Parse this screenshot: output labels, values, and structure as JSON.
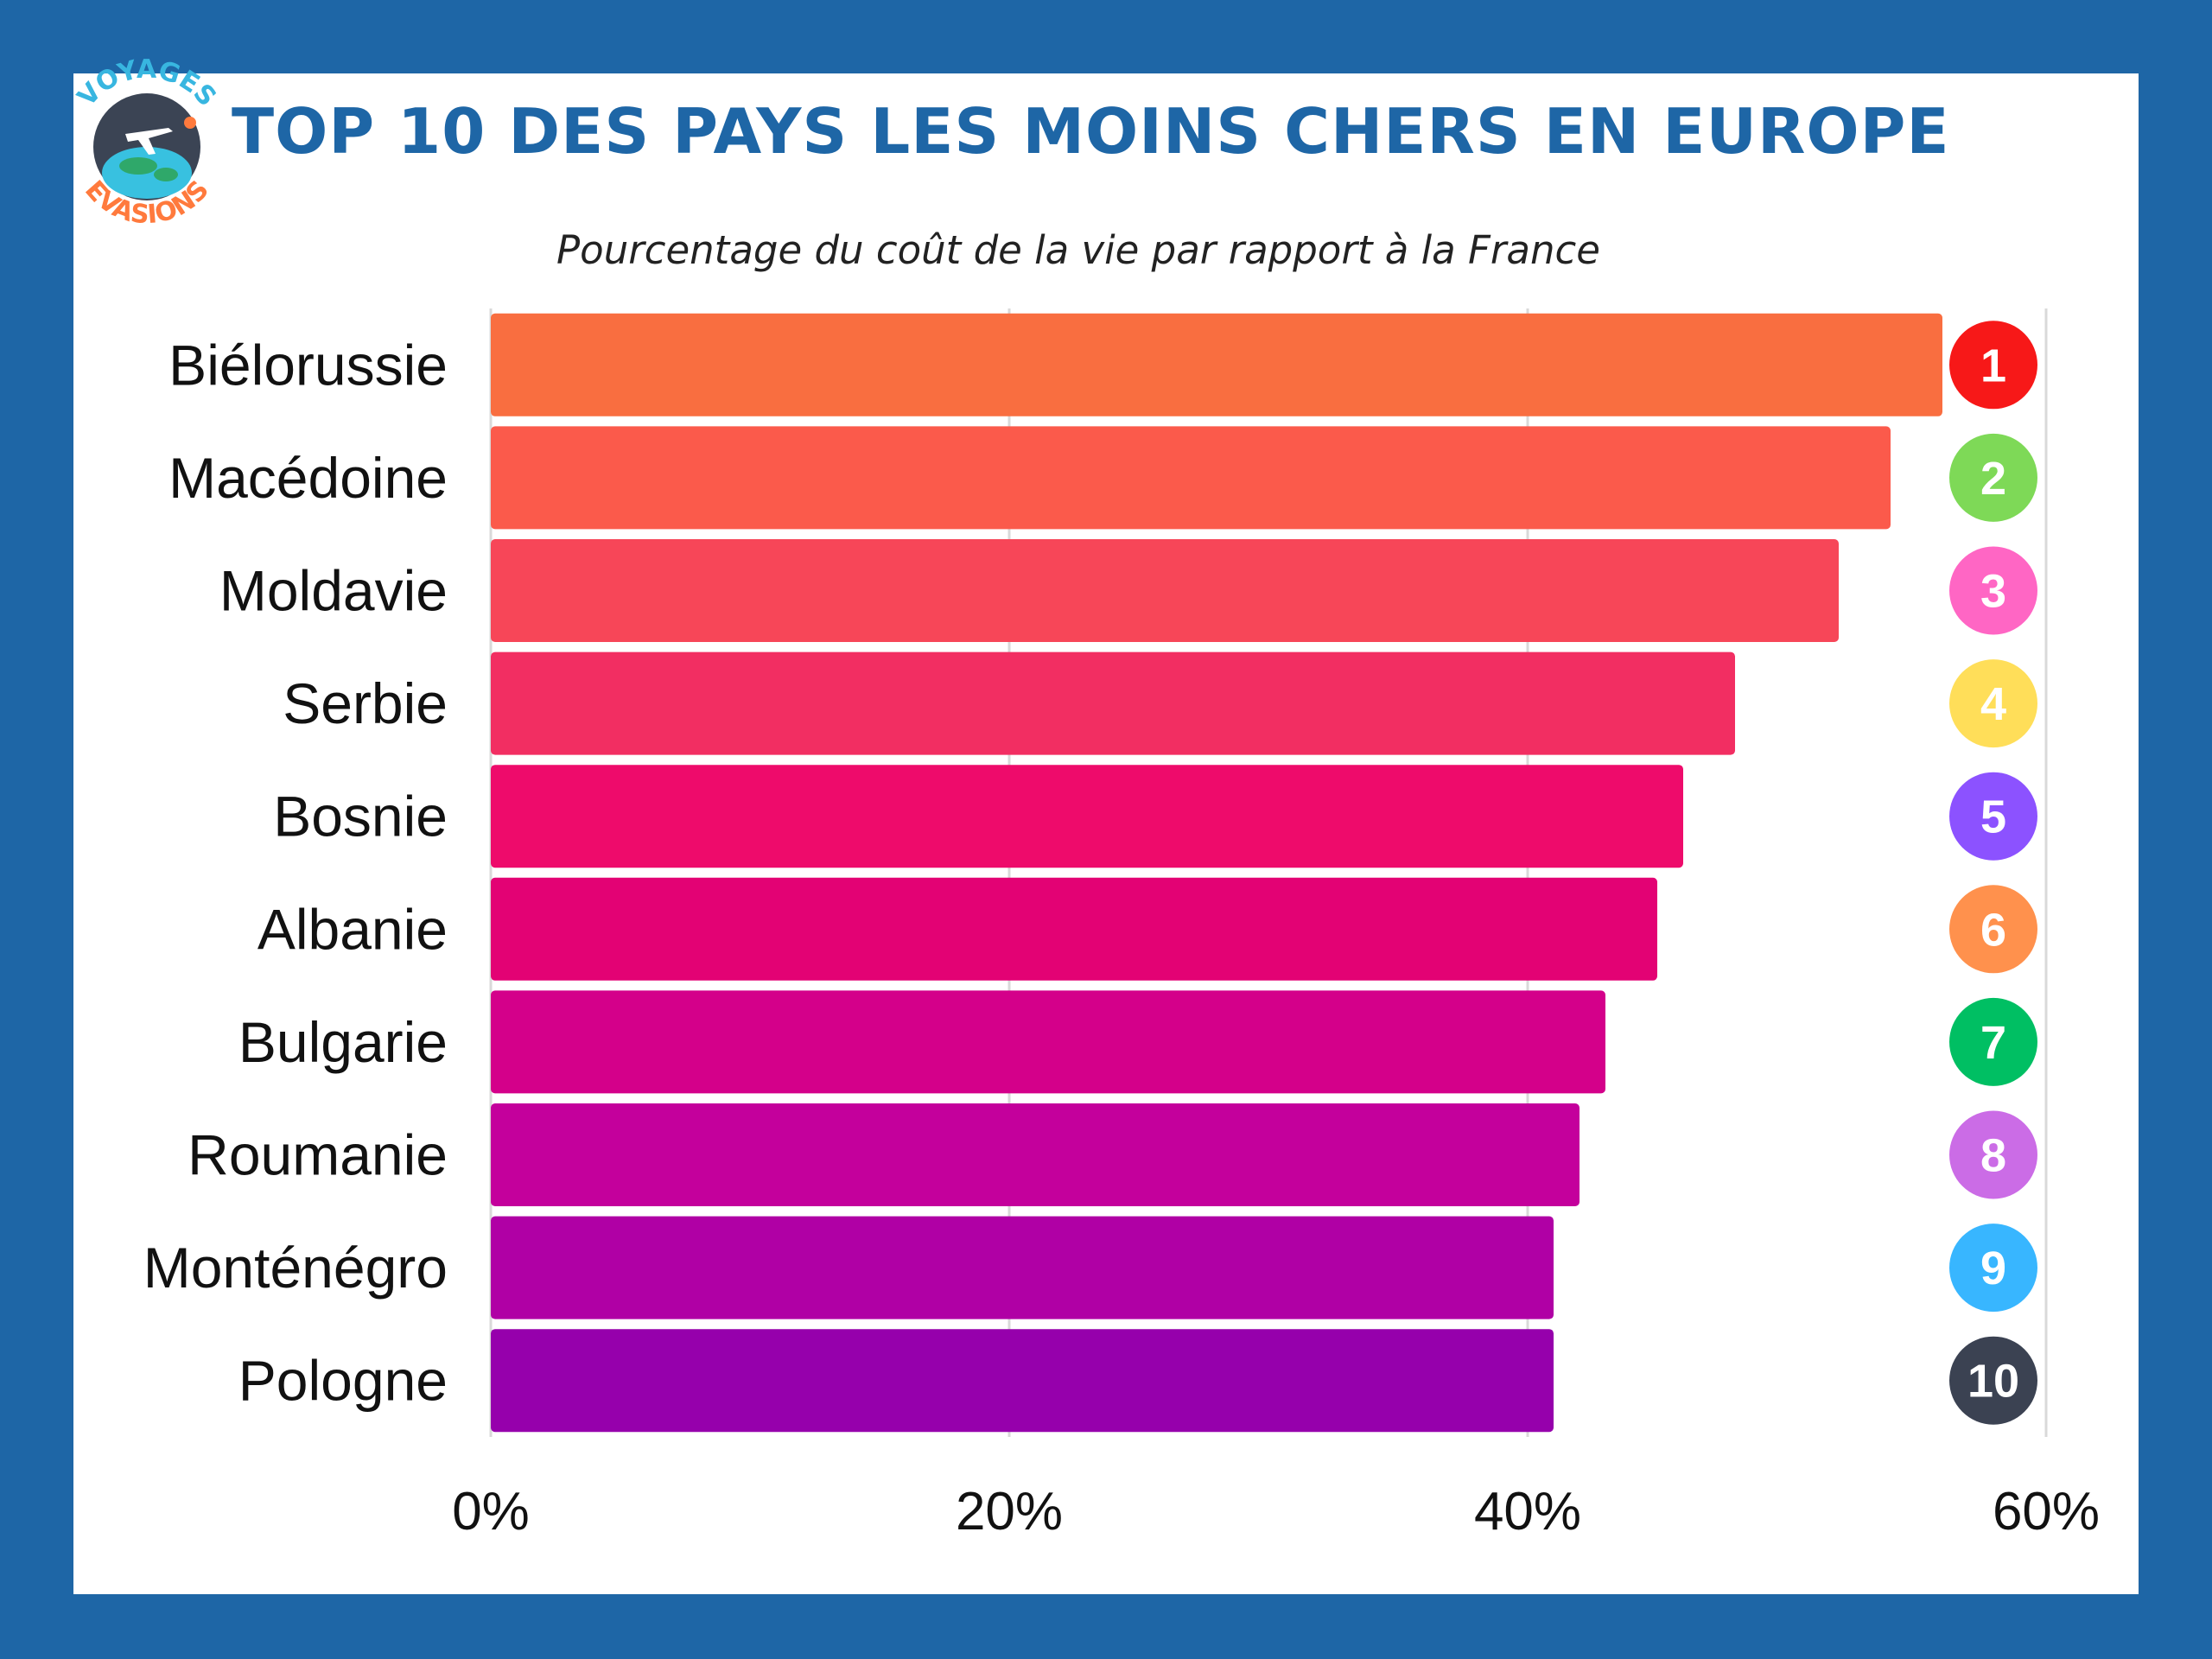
{
  "header": {
    "title": "TOP 10 DES PAYS LES MOINS CHERS EN EUROPE",
    "subtitle": "Pourcentage du coût de la vie par rapport à la France"
  },
  "logo": {
    "top_text": "VOYAGES",
    "bottom_text": "EVASIONS",
    "icon": "globe-airplane-icon"
  },
  "colors": {
    "frame": "#1e66a6",
    "title": "#1e66a6"
  },
  "chart_data": {
    "type": "bar",
    "orientation": "horizontal",
    "title": "TOP 10 DES PAYS LES MOINS CHERS EN EUROPE",
    "subtitle": "Pourcentage du coût de la vie par rapport à la France",
    "xlabel": "",
    "ylabel": "",
    "xlim": [
      0,
      60
    ],
    "x_ticks": [
      "0%",
      "20%",
      "40%",
      "60%"
    ],
    "grid": true,
    "categories": [
      "Biélorussie",
      "Macédoine",
      "Moldavie",
      "Serbie",
      "Bosnie",
      "Albanie",
      "Bulgarie",
      "Roumanie",
      "Monténégro",
      "Pologne"
    ],
    "values": [
      56,
      54,
      52,
      48,
      46,
      45,
      43,
      42,
      41,
      41
    ],
    "bar_colors": [
      "#f96e40",
      "#fb5a4b",
      "#f74658",
      "#f22e62",
      "#ee0b6b",
      "#e30274",
      "#d4008a",
      "#c4009c",
      "#b000a5",
      "#9600ac"
    ],
    "ranks": [
      {
        "label": "1",
        "color": "#f71818"
      },
      {
        "label": "2",
        "color": "#7ed957"
      },
      {
        "label": "3",
        "color": "#ff66c4"
      },
      {
        "label": "4",
        "color": "#ffde59"
      },
      {
        "label": "5",
        "color": "#8c52ff"
      },
      {
        "label": "6",
        "color": "#ff914d"
      },
      {
        "label": "7",
        "color": "#00bf63"
      },
      {
        "label": "8",
        "color": "#cb6ce6"
      },
      {
        "label": "9",
        "color": "#38b6ff"
      },
      {
        "label": "10",
        "color": "#3b4252"
      }
    ]
  }
}
